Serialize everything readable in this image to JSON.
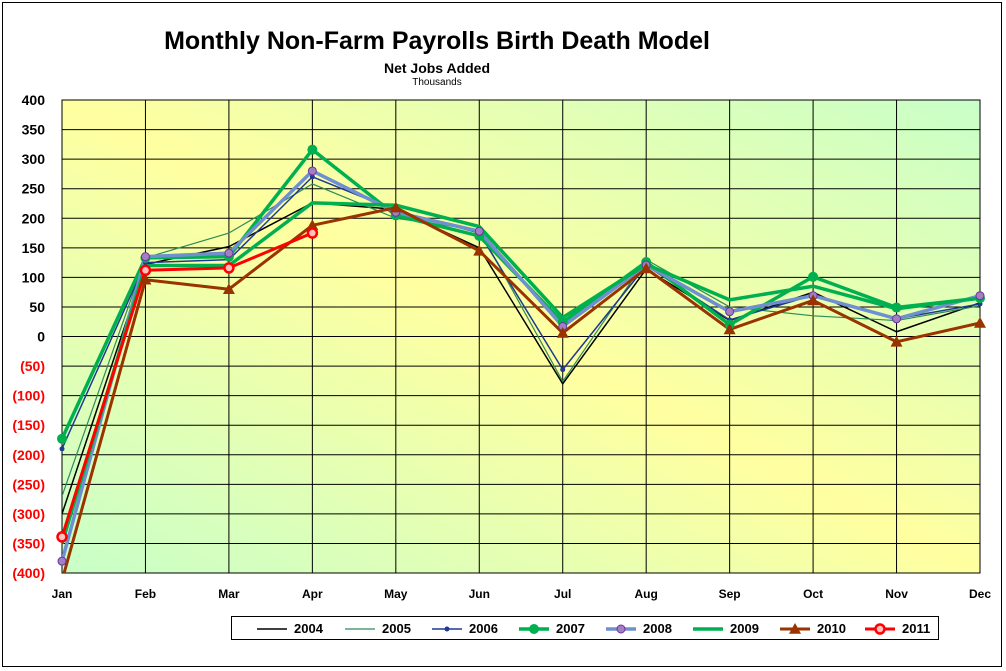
{
  "chart_data": {
    "type": "line",
    "title": "Monthly Non-Farm Payrolls Birth Death Model",
    "subtitle": "Net Jobs Added",
    "units": "Thousands",
    "categories": [
      "Jan",
      "Feb",
      "Mar",
      "Apr",
      "May",
      "Jun",
      "Jul",
      "Aug",
      "Sep",
      "Oct",
      "Nov",
      "Dec"
    ],
    "ylim": [
      -400,
      400
    ],
    "yticks": [
      {
        "value": 400,
        "label": "400"
      },
      {
        "value": 350,
        "label": "350"
      },
      {
        "value": 300,
        "label": "300"
      },
      {
        "value": 250,
        "label": "250"
      },
      {
        "value": 200,
        "label": "200"
      },
      {
        "value": 150,
        "label": "150"
      },
      {
        "value": 100,
        "label": "100"
      },
      {
        "value": 50,
        "label": "50"
      },
      {
        "value": 0,
        "label": "0"
      },
      {
        "value": -50,
        "label": "(50)"
      },
      {
        "value": -100,
        "label": "(100)"
      },
      {
        "value": -150,
        "label": "(150)"
      },
      {
        "value": -200,
        "label": "(200)"
      },
      {
        "value": -250,
        "label": "(250)"
      },
      {
        "value": -300,
        "label": "(300)"
      },
      {
        "value": -350,
        "label": "(350)"
      },
      {
        "value": -400,
        "label": "(400)"
      }
    ],
    "negative_label_color": "#ff0000",
    "grid": true,
    "legend_position": "bottom",
    "series": [
      {
        "name": "2004",
        "color": "#000000",
        "marker": "none",
        "values": [
          -300,
          122,
          152,
          226,
          215,
          150,
          -80,
          114,
          27,
          75,
          8,
          57
        ]
      },
      {
        "name": "2005",
        "color": "#2e8b57",
        "marker": "none",
        "values": [
          -270,
          133,
          175,
          258,
          200,
          180,
          -76,
          130,
          50,
          35,
          27,
          52
        ]
      },
      {
        "name": "2006",
        "color": "#1f3a93",
        "marker": "dot",
        "values": [
          -190,
          125,
          130,
          270,
          213,
          175,
          -56,
          120,
          28,
          70,
          30,
          55
        ]
      },
      {
        "name": "2007",
        "color": "#00b050",
        "marker": "circle",
        "values": [
          -173,
          133,
          135,
          316,
          205,
          170,
          24,
          126,
          20,
          101,
          49,
          65
        ]
      },
      {
        "name": "2008",
        "color": "#6f8fcf",
        "marker": "circle-purple",
        "values": [
          -380,
          135,
          141,
          280,
          210,
          178,
          17,
          121,
          42,
          69,
          30,
          69
        ]
      },
      {
        "name": "2009",
        "color": "#00b050",
        "marker": "none",
        "values": [
          -350,
          120,
          120,
          226,
          222,
          186,
          32,
          122,
          62,
          85,
          47,
          65
        ]
      },
      {
        "name": "2010",
        "color": "#993300",
        "marker": "triangle",
        "values": [
          -413,
          96,
          80,
          188,
          218,
          145,
          6,
          115,
          12,
          61,
          -9,
          23
        ]
      },
      {
        "name": "2011",
        "color": "#ff0000",
        "marker": "circle-red",
        "values": [
          -339,
          112,
          116,
          175,
          null,
          null,
          null,
          null,
          null,
          null,
          null,
          null
        ]
      }
    ]
  }
}
